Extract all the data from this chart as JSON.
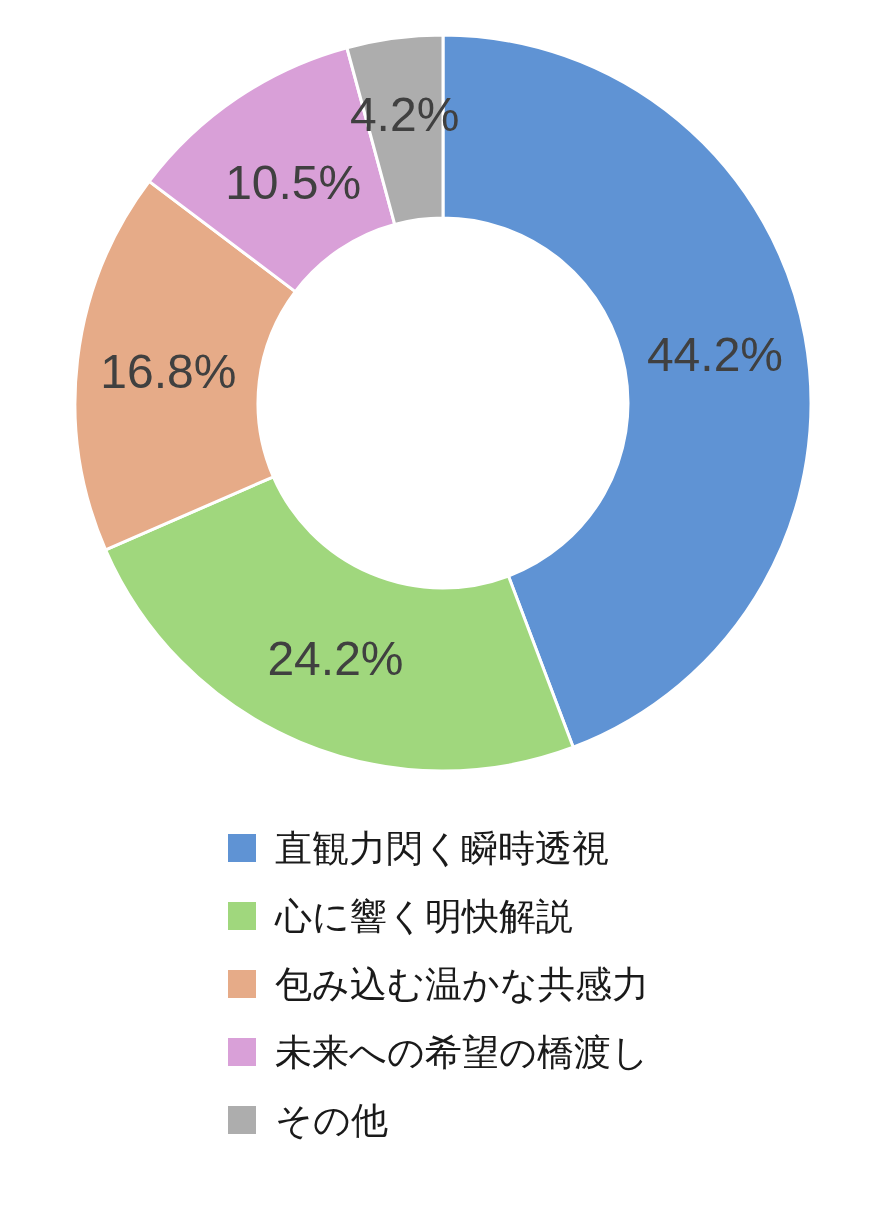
{
  "chart_data": {
    "type": "donut",
    "categories": [
      "直観力閃く瞬時透視",
      "心に響く明快解説",
      "包み込む温かな共感力",
      "未来への希望の橋渡し",
      "その他"
    ],
    "values": [
      44.2,
      24.2,
      16.8,
      10.5,
      4.2
    ],
    "value_labels": [
      "44.2%",
      "24.2%",
      "16.8%",
      "10.5%",
      "4.2%"
    ],
    "colors": [
      "#5f93d4",
      "#a0d77d",
      "#e6ab88",
      "#d9a0d8",
      "#adadad"
    ],
    "legend": "bottom"
  }
}
